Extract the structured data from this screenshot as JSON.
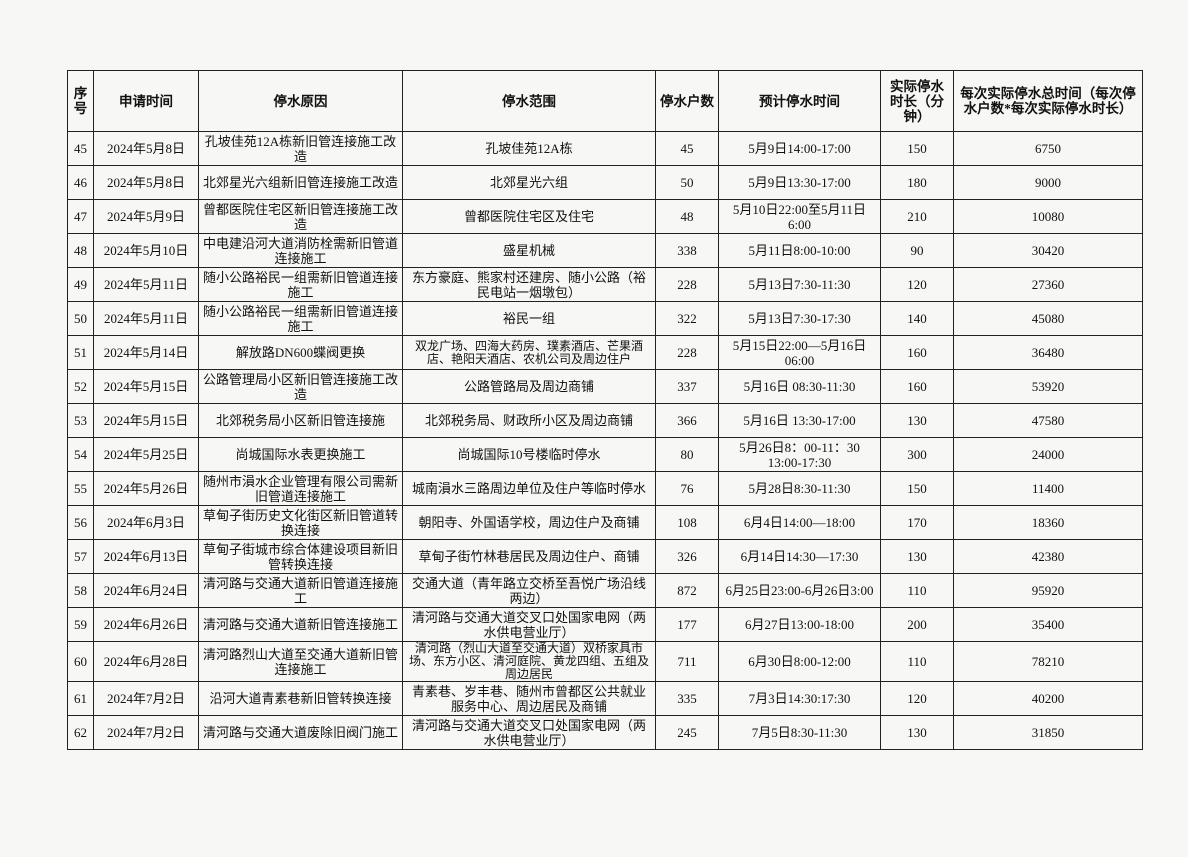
{
  "table": {
    "headers": [
      "序号",
      "申请时间",
      "停水原因",
      "停水范围",
      "停水户数",
      "预计停水时间",
      "实际停水时长（分钟）",
      "每次实际停水总时间（每次停水户数*每次实际停水时长）"
    ],
    "rows": [
      [
        "45",
        "2024年5月8日",
        "孔坡佳苑12A栋新旧管连接施工改造",
        "孔坡佳苑12A栋",
        "45",
        "5月9日14:00-17:00",
        "150",
        "6750"
      ],
      [
        "46",
        "2024年5月8日",
        "北郊星光六组新旧管连接施工改造",
        "北郊星光六组",
        "50",
        "5月9日13:30-17:00",
        "180",
        "9000"
      ],
      [
        "47",
        "2024年5月9日",
        "曾都医院住宅区新旧管连接施工改造",
        "曾都医院住宅区及住宅",
        "48",
        "5月10日22:00至5月11日6:00",
        "210",
        "10080"
      ],
      [
        "48",
        "2024年5月10日",
        "中电建沿河大道消防栓需新旧管道连接施工",
        "盛星机械",
        "338",
        "5月11日8:00-10:00",
        "90",
        "30420"
      ],
      [
        "49",
        "2024年5月11日",
        "随小公路裕民一组需新旧管道连接施工",
        "东方豪庭、熊家村还建房、随小公路（裕民电站一烟墩包）",
        "228",
        "5月13日7:30-11:30",
        "120",
        "27360"
      ],
      [
        "50",
        "2024年5月11日",
        "随小公路裕民一组需新旧管道连接施工",
        "裕民一组",
        "322",
        "5月13日7:30-17:30",
        "140",
        "45080"
      ],
      [
        "51",
        "2024年5月14日",
        "解放路DN600蝶阀更换",
        "双龙广场、四海大药房、璞素酒店、芒果酒店、艳阳天酒店、农机公司及周边住户",
        "228",
        "5月15日22:00—5月16日06:00",
        "160",
        "36480"
      ],
      [
        "52",
        "2024年5月15日",
        "公路管理局小区新旧管连接施工改造",
        "公路管路局及周边商铺",
        "337",
        "5月16日 08:30-11:30",
        "160",
        "53920"
      ],
      [
        "53",
        "2024年5月15日",
        "北郊税务局小区新旧管连接施",
        "北郊税务局、财政所小区及周边商铺",
        "366",
        "5月16日 13:30-17:00",
        "130",
        "47580"
      ],
      [
        "54",
        "2024年5月25日",
        "尚城国际水表更换施工",
        "尚城国际10号楼临时停水",
        "80",
        "5月26日8：00-11：30 13:00-17:30",
        "300",
        "24000"
      ],
      [
        "55",
        "2024年5月26日",
        "随州市溳水企业管理有限公司需新旧管道连接施工",
        "城南溳水三路周边单位及住户等临时停水",
        "76",
        "5月28日8:30-11:30",
        "150",
        "11400"
      ],
      [
        "56",
        "2024年6月3日",
        "草甸子街历史文化街区新旧管道转换连接",
        "朝阳寺、外国语学校，周边住户及商铺",
        "108",
        "6月4日14:00—18:00",
        "170",
        "18360"
      ],
      [
        "57",
        "2024年6月13日",
        "草甸子街城市综合体建设项目新旧管转换连接",
        "草甸子街竹林巷居民及周边住户、商铺",
        "326",
        "6月14日14:30—17:30",
        "130",
        "42380"
      ],
      [
        "58",
        "2024年6月24日",
        "清河路与交通大道新旧管道连接施工",
        "交通大道（青年路立交桥至吾悦广场沿线两边）",
        "872",
        "6月25日23:00-6月26日3:00",
        "110",
        "95920"
      ],
      [
        "59",
        "2024年6月26日",
        "清河路与交通大道新旧管连接施工",
        "清河路与交通大道交叉口处国家电网（两水供电营业厅）",
        "177",
        "6月27日13:00-18:00",
        "200",
        "35400"
      ],
      [
        "60",
        "2024年6月28日",
        "清河路烈山大道至交通大道新旧管连接施工",
        "清河路（烈山大道至交通大道）双桥家具市场、东方小区、清河庭院、黄龙四组、五组及周边居民",
        "711",
        "6月30日8:00-12:00",
        "110",
        "78210"
      ],
      [
        "61",
        "2024年7月2日",
        "沿河大道青素巷新旧管转换连接",
        "青素巷、岁丰巷、随州市曾都区公共就业服务中心、周边居民及商铺",
        "335",
        "7月3日14:30:17:30",
        "120",
        "40200"
      ],
      [
        "62",
        "2024年7月2日",
        "清河路与交通大道废除旧阀门施工",
        "清河路与交通大道交叉口处国家电网（两水供电营业厅）",
        "245",
        "7月5日8:30-11:30",
        "130",
        "31850"
      ]
    ]
  }
}
